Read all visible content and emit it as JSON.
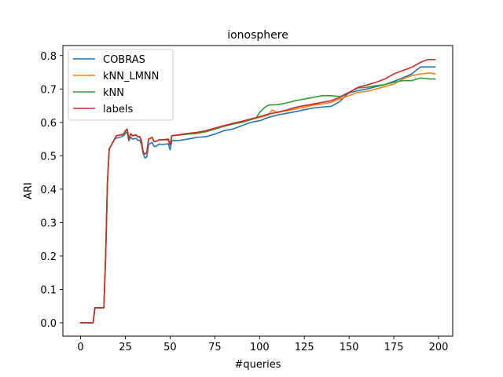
{
  "chart_data": {
    "type": "line",
    "title": "ionosphere",
    "xlabel": "#queries",
    "ylabel": "ARI",
    "xlim": [
      -9.9,
      207.9
    ],
    "ylim": [
      -0.04,
      0.83
    ],
    "xticks": [
      0,
      25,
      50,
      75,
      100,
      125,
      150,
      175,
      200
    ],
    "yticks": [
      0.0,
      0.1,
      0.2,
      0.3,
      0.4,
      0.5,
      0.6,
      0.7,
      0.8
    ],
    "ytick_labels": [
      "0.0",
      "0.1",
      "0.2",
      "0.3",
      "0.4",
      "0.5",
      "0.6",
      "0.7",
      "0.8"
    ],
    "grid": false,
    "legend_position": "upper-left",
    "series": [
      {
        "name": "COBRAS",
        "color": "#1f77b4",
        "points": [
          [
            0,
            0.0
          ],
          [
            3,
            0.0
          ],
          [
            7,
            0.0
          ],
          [
            8,
            0.045
          ],
          [
            12,
            0.045
          ],
          [
            13,
            0.045
          ],
          [
            14,
            0.2
          ],
          [
            15,
            0.42
          ],
          [
            16,
            0.52
          ],
          [
            17,
            0.53
          ],
          [
            18,
            0.54
          ],
          [
            19,
            0.55
          ],
          [
            20,
            0.553
          ],
          [
            22,
            0.555
          ],
          [
            24,
            0.56
          ],
          [
            25,
            0.567
          ],
          [
            26,
            0.57
          ],
          [
            27,
            0.545
          ],
          [
            28,
            0.556
          ],
          [
            29,
            0.55
          ],
          [
            31,
            0.552
          ],
          [
            32,
            0.546
          ],
          [
            33,
            0.547
          ],
          [
            34,
            0.535
          ],
          [
            35,
            0.505
          ],
          [
            36,
            0.493
          ],
          [
            37,
            0.497
          ],
          [
            38,
            0.534
          ],
          [
            40,
            0.54
          ],
          [
            41,
            0.528
          ],
          [
            42,
            0.528
          ],
          [
            44,
            0.535
          ],
          [
            46,
            0.534
          ],
          [
            49,
            0.536
          ],
          [
            50,
            0.518
          ],
          [
            51,
            0.545
          ],
          [
            55,
            0.546
          ],
          [
            60,
            0.55
          ],
          [
            65,
            0.555
          ],
          [
            70,
            0.557
          ],
          [
            75,
            0.565
          ],
          [
            80,
            0.575
          ],
          [
            85,
            0.58
          ],
          [
            90,
            0.59
          ],
          [
            95,
            0.6
          ],
          [
            100,
            0.605
          ],
          [
            105,
            0.615
          ],
          [
            110,
            0.622
          ],
          [
            115,
            0.627
          ],
          [
            120,
            0.632
          ],
          [
            125,
            0.638
          ],
          [
            130,
            0.643
          ],
          [
            135,
            0.646
          ],
          [
            140,
            0.648
          ],
          [
            145,
            0.663
          ],
          [
            148,
            0.68
          ],
          [
            150,
            0.688
          ],
          [
            155,
            0.695
          ],
          [
            160,
            0.7
          ],
          [
            165,
            0.707
          ],
          [
            170,
            0.713
          ],
          [
            175,
            0.723
          ],
          [
            180,
            0.733
          ],
          [
            185,
            0.745
          ],
          [
            188,
            0.758
          ],
          [
            190,
            0.766
          ],
          [
            198,
            0.766
          ]
        ]
      },
      {
        "name": "kNN_LMNN",
        "color": "#ff7f0e",
        "points": [
          [
            0,
            0.0
          ],
          [
            3,
            0.0
          ],
          [
            7,
            0.0
          ],
          [
            8,
            0.045
          ],
          [
            12,
            0.045
          ],
          [
            13,
            0.045
          ],
          [
            14,
            0.2
          ],
          [
            15,
            0.42
          ],
          [
            16,
            0.52
          ],
          [
            17,
            0.53
          ],
          [
            18,
            0.54
          ],
          [
            19,
            0.55
          ],
          [
            20,
            0.56
          ],
          [
            22,
            0.562
          ],
          [
            24,
            0.563
          ],
          [
            25,
            0.573
          ],
          [
            26,
            0.578
          ],
          [
            27,
            0.55
          ],
          [
            28,
            0.566
          ],
          [
            29,
            0.56
          ],
          [
            31,
            0.562
          ],
          [
            32,
            0.556
          ],
          [
            33,
            0.557
          ],
          [
            34,
            0.545
          ],
          [
            35,
            0.51
          ],
          [
            36,
            0.505
          ],
          [
            37,
            0.51
          ],
          [
            38,
            0.55
          ],
          [
            40,
            0.555
          ],
          [
            41,
            0.543
          ],
          [
            42,
            0.543
          ],
          [
            44,
            0.548
          ],
          [
            46,
            0.548
          ],
          [
            49,
            0.548
          ],
          [
            50,
            0.533
          ],
          [
            51,
            0.56
          ],
          [
            55,
            0.562
          ],
          [
            60,
            0.565
          ],
          [
            65,
            0.567
          ],
          [
            70,
            0.572
          ],
          [
            75,
            0.58
          ],
          [
            80,
            0.588
          ],
          [
            85,
            0.595
          ],
          [
            90,
            0.6
          ],
          [
            95,
            0.608
          ],
          [
            100,
            0.615
          ],
          [
            105,
            0.622
          ],
          [
            107,
            0.637
          ],
          [
            110,
            0.63
          ],
          [
            115,
            0.635
          ],
          [
            120,
            0.64
          ],
          [
            125,
            0.645
          ],
          [
            130,
            0.652
          ],
          [
            135,
            0.655
          ],
          [
            140,
            0.66
          ],
          [
            145,
            0.67
          ],
          [
            150,
            0.68
          ],
          [
            155,
            0.69
          ],
          [
            160,
            0.693
          ],
          [
            165,
            0.7
          ],
          [
            170,
            0.707
          ],
          [
            175,
            0.715
          ],
          [
            180,
            0.73
          ],
          [
            185,
            0.74
          ],
          [
            190,
            0.745
          ],
          [
            195,
            0.748
          ],
          [
            198,
            0.745
          ]
        ]
      },
      {
        "name": "kNN",
        "color": "#2ca02c",
        "points": [
          [
            0,
            0.0
          ],
          [
            3,
            0.0
          ],
          [
            7,
            0.0
          ],
          [
            8,
            0.045
          ],
          [
            12,
            0.045
          ],
          [
            13,
            0.045
          ],
          [
            14,
            0.2
          ],
          [
            15,
            0.42
          ],
          [
            16,
            0.52
          ],
          [
            17,
            0.53
          ],
          [
            18,
            0.54
          ],
          [
            19,
            0.55
          ],
          [
            20,
            0.56
          ],
          [
            22,
            0.562
          ],
          [
            24,
            0.563
          ],
          [
            25,
            0.573
          ],
          [
            26,
            0.578
          ],
          [
            27,
            0.55
          ],
          [
            28,
            0.566
          ],
          [
            29,
            0.56
          ],
          [
            31,
            0.562
          ],
          [
            32,
            0.556
          ],
          [
            33,
            0.557
          ],
          [
            34,
            0.545
          ],
          [
            35,
            0.51
          ],
          [
            36,
            0.505
          ],
          [
            37,
            0.51
          ],
          [
            38,
            0.55
          ],
          [
            40,
            0.555
          ],
          [
            41,
            0.543
          ],
          [
            42,
            0.543
          ],
          [
            44,
            0.548
          ],
          [
            46,
            0.548
          ],
          [
            49,
            0.548
          ],
          [
            50,
            0.533
          ],
          [
            51,
            0.56
          ],
          [
            55,
            0.562
          ],
          [
            60,
            0.565
          ],
          [
            65,
            0.567
          ],
          [
            70,
            0.572
          ],
          [
            75,
            0.58
          ],
          [
            80,
            0.588
          ],
          [
            85,
            0.595
          ],
          [
            90,
            0.6
          ],
          [
            95,
            0.608
          ],
          [
            98,
            0.613
          ],
          [
            100,
            0.63
          ],
          [
            103,
            0.645
          ],
          [
            105,
            0.652
          ],
          [
            110,
            0.653
          ],
          [
            115,
            0.658
          ],
          [
            120,
            0.665
          ],
          [
            125,
            0.67
          ],
          [
            130,
            0.675
          ],
          [
            135,
            0.68
          ],
          [
            140,
            0.68
          ],
          [
            145,
            0.677
          ],
          [
            148,
            0.685
          ],
          [
            150,
            0.69
          ],
          [
            155,
            0.703
          ],
          [
            160,
            0.705
          ],
          [
            165,
            0.71
          ],
          [
            170,
            0.713
          ],
          [
            175,
            0.72
          ],
          [
            180,
            0.725
          ],
          [
            185,
            0.725
          ],
          [
            190,
            0.733
          ],
          [
            195,
            0.73
          ],
          [
            198,
            0.73
          ]
        ]
      },
      {
        "name": "labels",
        "color": "#d62728",
        "points": [
          [
            0,
            0.0
          ],
          [
            3,
            0.0
          ],
          [
            7,
            0.0
          ],
          [
            8,
            0.045
          ],
          [
            12,
            0.045
          ],
          [
            13,
            0.045
          ],
          [
            14,
            0.2
          ],
          [
            15,
            0.42
          ],
          [
            16,
            0.52
          ],
          [
            17,
            0.53
          ],
          [
            18,
            0.54
          ],
          [
            19,
            0.55
          ],
          [
            20,
            0.56
          ],
          [
            22,
            0.562
          ],
          [
            24,
            0.565
          ],
          [
            25,
            0.575
          ],
          [
            26,
            0.58
          ],
          [
            27,
            0.55
          ],
          [
            28,
            0.566
          ],
          [
            29,
            0.56
          ],
          [
            31,
            0.563
          ],
          [
            32,
            0.557
          ],
          [
            33,
            0.558
          ],
          [
            34,
            0.545
          ],
          [
            35,
            0.51
          ],
          [
            36,
            0.505
          ],
          [
            37,
            0.51
          ],
          [
            38,
            0.55
          ],
          [
            40,
            0.555
          ],
          [
            41,
            0.543
          ],
          [
            42,
            0.543
          ],
          [
            44,
            0.548
          ],
          [
            46,
            0.548
          ],
          [
            49,
            0.55
          ],
          [
            50,
            0.533
          ],
          [
            51,
            0.56
          ],
          [
            55,
            0.563
          ],
          [
            60,
            0.567
          ],
          [
            65,
            0.57
          ],
          [
            70,
            0.575
          ],
          [
            75,
            0.583
          ],
          [
            80,
            0.59
          ],
          [
            85,
            0.597
          ],
          [
            90,
            0.603
          ],
          [
            95,
            0.61
          ],
          [
            100,
            0.617
          ],
          [
            105,
            0.625
          ],
          [
            110,
            0.63
          ],
          [
            115,
            0.637
          ],
          [
            120,
            0.645
          ],
          [
            125,
            0.65
          ],
          [
            130,
            0.655
          ],
          [
            135,
            0.66
          ],
          [
            140,
            0.665
          ],
          [
            145,
            0.675
          ],
          [
            150,
            0.69
          ],
          [
            155,
            0.705
          ],
          [
            160,
            0.712
          ],
          [
            165,
            0.72
          ],
          [
            170,
            0.73
          ],
          [
            175,
            0.745
          ],
          [
            180,
            0.755
          ],
          [
            185,
            0.765
          ],
          [
            190,
            0.78
          ],
          [
            194,
            0.788
          ],
          [
            198,
            0.788
          ]
        ]
      }
    ]
  }
}
